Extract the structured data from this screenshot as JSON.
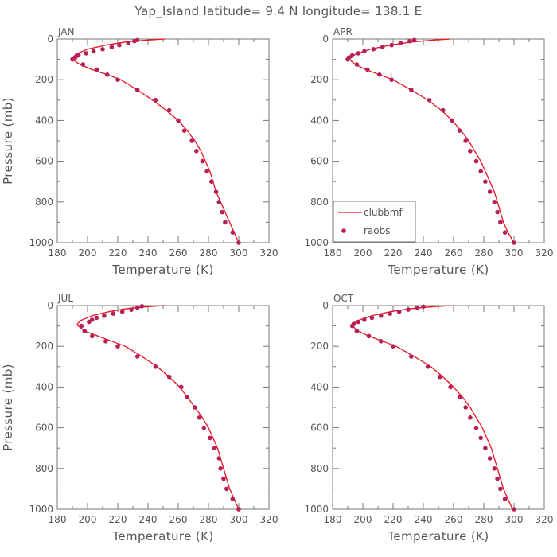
{
  "figure": {
    "title": "Yap_Island   latitude=  9.4  N longitude=  138.1  E"
  },
  "chart_data": [
    {
      "type": "line",
      "title": "JAN",
      "xlabel": "Temperature (K)",
      "ylabel": "Pressure (mb)",
      "xlim": [
        180,
        320
      ],
      "ylim": [
        1000,
        0
      ],
      "xticks": [
        180,
        200,
        220,
        240,
        260,
        280,
        300,
        320
      ],
      "yticks": [
        0,
        200,
        400,
        600,
        800,
        1000
      ],
      "series": [
        {
          "name": "clubbmf",
          "kind": "line",
          "color": "#e8141e",
          "points": [
            [
              251,
              0
            ],
            [
              240,
              5
            ],
            [
              225,
              15
            ],
            [
              212,
              30
            ],
            [
              200,
              50
            ],
            [
              192,
              75
            ],
            [
              190,
              100
            ],
            [
              195,
              125
            ],
            [
              203,
              150
            ],
            [
              213,
              175
            ],
            [
              222,
              200
            ],
            [
              233,
              250
            ],
            [
              243,
              300
            ],
            [
              252,
              350
            ],
            [
              260,
              400
            ],
            [
              266,
              450
            ],
            [
              271,
              500
            ],
            [
              275,
              550
            ],
            [
              278,
              600
            ],
            [
              281,
              650
            ],
            [
              283,
              700
            ],
            [
              285,
              750
            ],
            [
              288,
              800
            ],
            [
              291,
              850
            ],
            [
              294,
              900
            ],
            [
              297,
              950
            ],
            [
              300,
              1000
            ]
          ]
        },
        {
          "name": "raobs",
          "kind": "scatter",
          "color": "#b5205a",
          "points": [
            [
              233,
              5
            ],
            [
              231,
              10
            ],
            [
              227,
              20
            ],
            [
              221,
              30
            ],
            [
              216,
              40
            ],
            [
              210,
              50
            ],
            [
              204,
              60
            ],
            [
              199,
              70
            ],
            [
              194,
              80
            ],
            [
              192,
              90
            ],
            [
              190,
              100
            ],
            [
              197,
              125
            ],
            [
              206,
              150
            ],
            [
              213,
              175
            ],
            [
              220,
              200
            ],
            [
              233,
              250
            ],
            [
              245,
              300
            ],
            [
              254,
              350
            ],
            [
              260,
              400
            ],
            [
              264,
              450
            ],
            [
              269,
              500
            ],
            [
              272,
              550
            ],
            [
              276,
              600
            ],
            [
              279,
              650
            ],
            [
              282,
              700
            ],
            [
              285,
              750
            ],
            [
              287,
              800
            ],
            [
              289,
              850
            ],
            [
              291,
              900
            ],
            [
              296,
              950
            ],
            [
              300,
              1000
            ]
          ]
        }
      ]
    },
    {
      "type": "line",
      "title": "APR",
      "xlabel": "Temperature (K)",
      "ylabel": "",
      "xlim": [
        180,
        320
      ],
      "ylim": [
        1000,
        0
      ],
      "xticks": [
        180,
        200,
        220,
        240,
        260,
        280,
        300,
        320
      ],
      "yticks": [
        0,
        200,
        400,
        600,
        800,
        1000
      ],
      "legend": {
        "placement": "lower-left",
        "entries": [
          "clubbmf",
          "raobs"
        ]
      },
      "series": [
        {
          "name": "clubbmf",
          "kind": "line",
          "color": "#e8141e",
          "points": [
            [
              258,
              0
            ],
            [
              247,
              5
            ],
            [
              232,
              15
            ],
            [
              218,
              30
            ],
            [
              205,
              50
            ],
            [
              195,
              75
            ],
            [
              191,
              100
            ],
            [
              195,
              125
            ],
            [
              202,
              150
            ],
            [
              211,
              175
            ],
            [
              220,
              200
            ],
            [
              232,
              250
            ],
            [
              243,
              300
            ],
            [
              252,
              350
            ],
            [
              259,
              400
            ],
            [
              265,
              450
            ],
            [
              270,
              500
            ],
            [
              274,
              550
            ],
            [
              278,
              600
            ],
            [
              281,
              650
            ],
            [
              284,
              700
            ],
            [
              287,
              750
            ],
            [
              289,
              800
            ],
            [
              291,
              850
            ],
            [
              293,
              900
            ],
            [
              296,
              950
            ],
            [
              300,
              1000
            ]
          ]
        },
        {
          "name": "raobs",
          "kind": "scatter",
          "color": "#b5205a",
          "points": [
            [
              234,
              5
            ],
            [
              231,
              10
            ],
            [
              225,
              20
            ],
            [
              219,
              30
            ],
            [
              213,
              40
            ],
            [
              207,
              50
            ],
            [
              201,
              60
            ],
            [
              197,
              70
            ],
            [
              193,
              80
            ],
            [
              191,
              90
            ],
            [
              190,
              100
            ],
            [
              196,
              125
            ],
            [
              203,
              150
            ],
            [
              211,
              175
            ],
            [
              219,
              200
            ],
            [
              232,
              250
            ],
            [
              244,
              300
            ],
            [
              253,
              350
            ],
            [
              259,
              400
            ],
            [
              264,
              450
            ],
            [
              268,
              500
            ],
            [
              271,
              550
            ],
            [
              275,
              600
            ],
            [
              278,
              650
            ],
            [
              281,
              700
            ],
            [
              284,
              750
            ],
            [
              287,
              800
            ],
            [
              289,
              850
            ],
            [
              291,
              900
            ],
            [
              294,
              950
            ],
            [
              300,
              1000
            ]
          ]
        }
      ]
    },
    {
      "type": "line",
      "title": "JUL",
      "xlabel": "Temperature (K)",
      "ylabel": "Pressure (mb)",
      "xlim": [
        180,
        320
      ],
      "ylim": [
        1000,
        0
      ],
      "xticks": [
        180,
        200,
        220,
        240,
        260,
        280,
        300,
        320
      ],
      "yticks": [
        0,
        200,
        400,
        600,
        800,
        1000
      ],
      "series": [
        {
          "name": "clubbmf",
          "kind": "line",
          "color": "#e8141e",
          "points": [
            [
              251,
              0
            ],
            [
              240,
              5
            ],
            [
              226,
              15
            ],
            [
              214,
              30
            ],
            [
              203,
              50
            ],
            [
              195,
              75
            ],
            [
              193,
              95
            ],
            [
              198,
              125
            ],
            [
              207,
              150
            ],
            [
              216,
              175
            ],
            [
              225,
              200
            ],
            [
              236,
              250
            ],
            [
              246,
              300
            ],
            [
              254,
              350
            ],
            [
              261,
              400
            ],
            [
              266,
              450
            ],
            [
              271,
              500
            ],
            [
              276,
              550
            ],
            [
              280,
              600
            ],
            [
              283,
              650
            ],
            [
              286,
              700
            ],
            [
              288,
              750
            ],
            [
              290,
              800
            ],
            [
              292,
              850
            ],
            [
              294,
              900
            ],
            [
              297,
              950
            ],
            [
              300,
              1000
            ]
          ]
        },
        {
          "name": "raobs",
          "kind": "scatter",
          "color": "#b5205a",
          "points": [
            [
              236,
              3
            ],
            [
              233,
              10
            ],
            [
              229,
              20
            ],
            [
              223,
              30
            ],
            [
              217,
              40
            ],
            [
              211,
              50
            ],
            [
              206,
              60
            ],
            [
              203,
              70
            ],
            [
              201,
              80
            ],
            [
              196,
              100
            ],
            [
              198,
              125
            ],
            [
              203,
              150
            ],
            [
              212,
              175
            ],
            [
              220,
              200
            ],
            [
              233,
              250
            ],
            [
              245,
              300
            ],
            [
              254,
              350
            ],
            [
              262,
              400
            ],
            [
              266,
              450
            ],
            [
              271,
              500
            ],
            [
              274,
              550
            ],
            [
              277,
              600
            ],
            [
              281,
              650
            ],
            [
              284,
              700
            ],
            [
              287,
              750
            ],
            [
              288,
              800
            ],
            [
              290,
              850
            ],
            [
              292,
              900
            ],
            [
              296,
              950
            ],
            [
              300,
              1000
            ]
          ]
        }
      ]
    },
    {
      "type": "line",
      "title": "OCT",
      "xlabel": "Temperature (K)",
      "ylabel": "",
      "xlim": [
        180,
        320
      ],
      "ylim": [
        1000,
        0
      ],
      "xticks": [
        180,
        200,
        220,
        240,
        260,
        280,
        300,
        320
      ],
      "yticks": [
        0,
        200,
        400,
        600,
        800,
        1000
      ],
      "series": [
        {
          "name": "clubbmf",
          "kind": "line",
          "color": "#e8141e",
          "points": [
            [
              258,
              0
            ],
            [
              247,
              5
            ],
            [
              232,
              15
            ],
            [
              218,
              30
            ],
            [
              206,
              50
            ],
            [
              196,
              75
            ],
            [
              193,
              100
            ],
            [
              197,
              125
            ],
            [
              204,
              150
            ],
            [
              213,
              175
            ],
            [
              222,
              200
            ],
            [
              234,
              250
            ],
            [
              245,
              300
            ],
            [
              253,
              350
            ],
            [
              260,
              400
            ],
            [
              266,
              450
            ],
            [
              271,
              500
            ],
            [
              275,
              550
            ],
            [
              279,
              600
            ],
            [
              282,
              650
            ],
            [
              285,
              700
            ],
            [
              287,
              750
            ],
            [
              289,
              800
            ],
            [
              291,
              850
            ],
            [
              293,
              900
            ],
            [
              296,
              950
            ],
            [
              299,
              1000
            ]
          ]
        },
        {
          "name": "raobs",
          "kind": "scatter",
          "color": "#b5205a",
          "points": [
            [
              240,
              5
            ],
            [
              236,
              10
            ],
            [
              230,
              20
            ],
            [
              224,
              30
            ],
            [
              218,
              40
            ],
            [
              212,
              50
            ],
            [
              206,
              60
            ],
            [
              201,
              70
            ],
            [
              197,
              80
            ],
            [
              194,
              90
            ],
            [
              193,
              100
            ],
            [
              196,
              125
            ],
            [
              204,
              150
            ],
            [
              212,
              175
            ],
            [
              220,
              200
            ],
            [
              232,
              250
            ],
            [
              243,
              300
            ],
            [
              251,
              350
            ],
            [
              258,
              400
            ],
            [
              264,
              450
            ],
            [
              268,
              500
            ],
            [
              271,
              550
            ],
            [
              275,
              600
            ],
            [
              278,
              650
            ],
            [
              281,
              700
            ],
            [
              284,
              750
            ],
            [
              287,
              800
            ],
            [
              289,
              850
            ],
            [
              291,
              900
            ],
            [
              294,
              950
            ],
            [
              300,
              1000
            ]
          ]
        }
      ]
    }
  ]
}
